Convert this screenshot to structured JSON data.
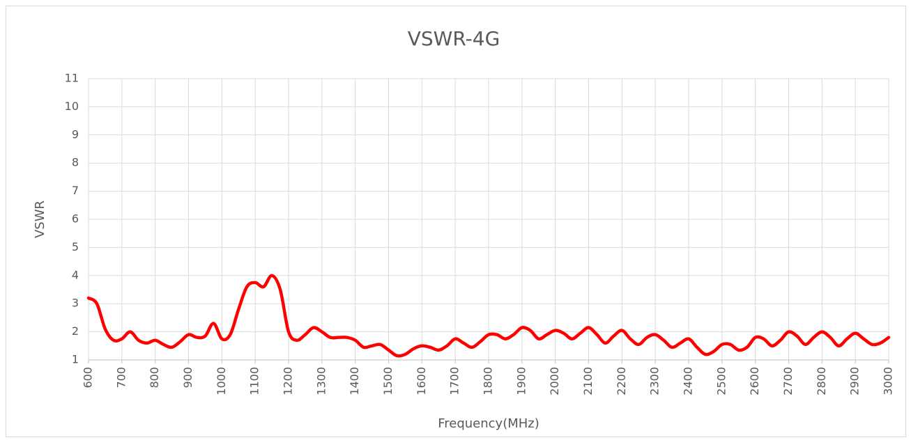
{
  "chart_data": {
    "type": "line",
    "title": "VSWR-4G",
    "x_label": "Frequency(MHz)",
    "y_label": "VSWR",
    "x": [
      600,
      625,
      650,
      675,
      700,
      725,
      750,
      775,
      800,
      825,
      850,
      875,
      900,
      925,
      950,
      975,
      1000,
      1025,
      1050,
      1075,
      1100,
      1125,
      1150,
      1175,
      1200,
      1225,
      1250,
      1275,
      1300,
      1325,
      1350,
      1375,
      1400,
      1425,
      1450,
      1475,
      1500,
      1525,
      1550,
      1575,
      1600,
      1625,
      1650,
      1675,
      1700,
      1725,
      1750,
      1775,
      1800,
      1825,
      1850,
      1875,
      1900,
      1925,
      1950,
      1975,
      2000,
      2025,
      2050,
      2075,
      2100,
      2125,
      2150,
      2175,
      2200,
      2225,
      2250,
      2275,
      2300,
      2325,
      2350,
      2375,
      2400,
      2425,
      2450,
      2475,
      2500,
      2525,
      2550,
      2575,
      2600,
      2625,
      2650,
      2675,
      2700,
      2725,
      2750,
      2775,
      2800,
      2825,
      2850,
      2875,
      2900,
      2925,
      2950,
      2975,
      3000
    ],
    "series": [
      {
        "name": "VSWR",
        "color": "#ff0000",
        "values": [
          3.2,
          3.0,
          2.1,
          1.7,
          1.75,
          2.0,
          1.7,
          1.6,
          1.7,
          1.55,
          1.45,
          1.65,
          1.9,
          1.8,
          1.85,
          2.3,
          1.75,
          1.9,
          2.8,
          3.6,
          3.75,
          3.6,
          4.0,
          3.5,
          2.0,
          1.7,
          1.9,
          2.15,
          2.0,
          1.8,
          1.8,
          1.8,
          1.7,
          1.45,
          1.5,
          1.55,
          1.35,
          1.15,
          1.2,
          1.4,
          1.5,
          1.45,
          1.35,
          1.5,
          1.75,
          1.6,
          1.45,
          1.65,
          1.9,
          1.9,
          1.75,
          1.9,
          2.15,
          2.05,
          1.75,
          1.9,
          2.05,
          1.95,
          1.75,
          1.95,
          2.15,
          1.9,
          1.6,
          1.85,
          2.05,
          1.75,
          1.55,
          1.8,
          1.9,
          1.7,
          1.45,
          1.6,
          1.75,
          1.45,
          1.2,
          1.3,
          1.55,
          1.55,
          1.35,
          1.45,
          1.8,
          1.75,
          1.5,
          1.7,
          2.0,
          1.85,
          1.55,
          1.8,
          2.0,
          1.8,
          1.5,
          1.75,
          1.95,
          1.75,
          1.55,
          1.6,
          1.8
        ]
      }
    ],
    "xlim": [
      600,
      3000
    ],
    "xticks": [
      600,
      700,
      800,
      900,
      1000,
      1100,
      1200,
      1300,
      1400,
      1500,
      1600,
      1700,
      1800,
      1900,
      2000,
      2100,
      2200,
      2300,
      2400,
      2500,
      2600,
      2700,
      2800,
      2900,
      3000
    ],
    "ylim": [
      1,
      11
    ],
    "yticks": [
      1,
      2,
      3,
      4,
      5,
      6,
      7,
      8,
      9,
      10,
      11
    ],
    "grid": true
  }
}
